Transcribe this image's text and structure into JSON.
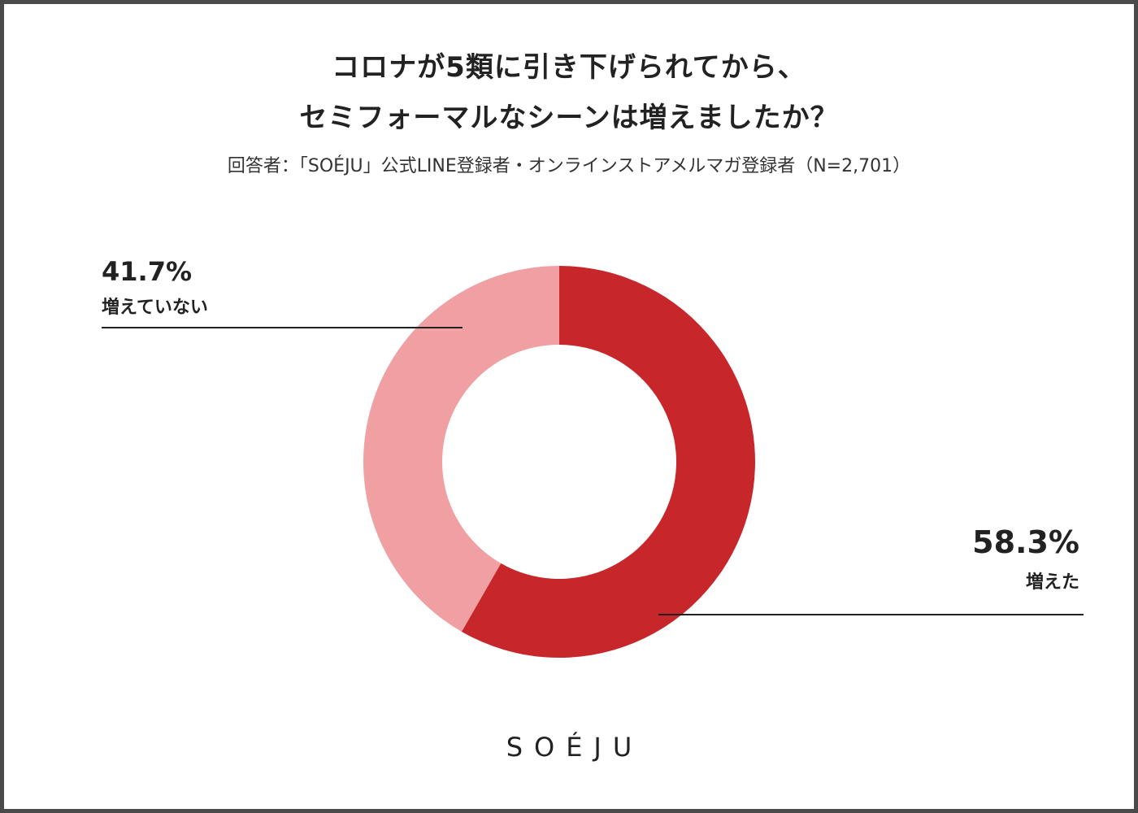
{
  "title_line1": "コロナが5類に引き下げられてから、",
  "title_line2": "セミフォーマルなシーンは増えましたか？",
  "subtitle": "回答者：「SOÉJU」公式LINE登録者・オンラインストアメルマガ登録者（N=2,701）",
  "logo": "SOÉJU",
  "colors": {
    "increased": "#c7272a",
    "not_increased": "#f0a0a3",
    "leader_line": "#222222"
  },
  "chart_data": {
    "type": "pie",
    "style": "donut",
    "title": "コロナが5類に引き下げられてから、セミフォーマルなシーンは増えましたか？",
    "slices": [
      {
        "label": "増えた",
        "value": 58.3,
        "display": "58.3%"
      },
      {
        "label": "増えていない",
        "value": 41.7,
        "display": "41.7%"
      }
    ],
    "start_angle": "12 o'clock",
    "direction": "clockwise"
  }
}
